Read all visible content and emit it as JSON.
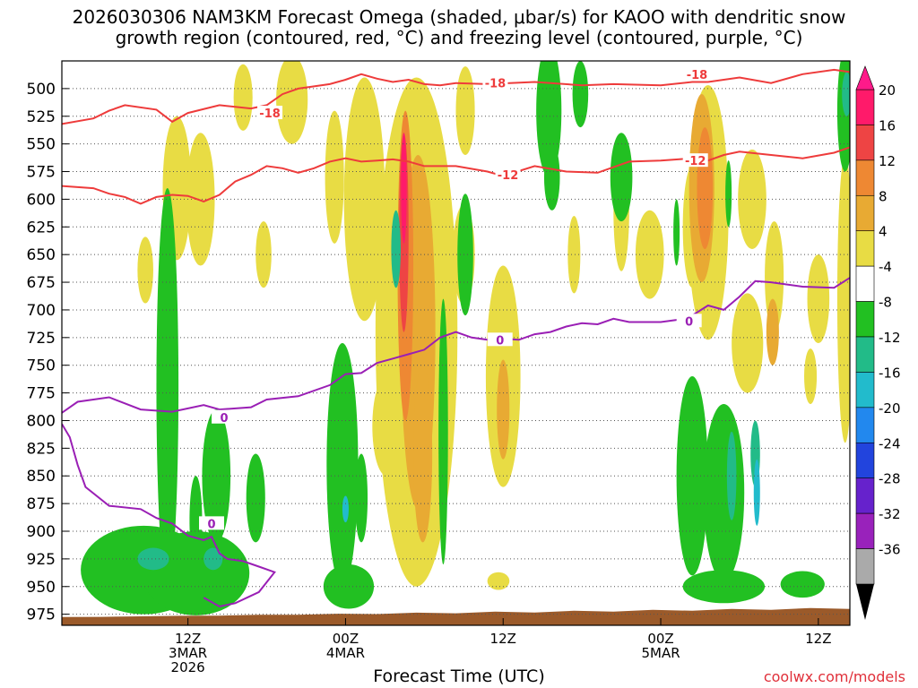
{
  "chart_data": {
    "type": "heatmap",
    "title_line1": "2026030306 NAM3KM Forecast Omega (shaded, μbar/s) for KAOO with dendritic snow",
    "title_line2": "growth region (contoured, red, °C) and freezing level (contoured, purple, °C)",
    "xlabel": "Forecast Time (UTC)",
    "credit": "coolwx.com/models",
    "x_range_hours": [
      -5,
      45
    ],
    "y_range_hpa": [
      475,
      985
    ],
    "y_ticks": [
      "500",
      "525",
      "550",
      "575",
      "600",
      "625",
      "650",
      "675",
      "700",
      "725",
      "750",
      "775",
      "800",
      "825",
      "850",
      "875",
      "900",
      "925",
      "950",
      "975"
    ],
    "x_ticks": [
      {
        "hour": 3,
        "lines": [
          "12Z",
          "3MAR",
          "2026"
        ]
      },
      {
        "hour": 13,
        "lines": [
          "00Z",
          "4MAR"
        ]
      },
      {
        "hour": 23,
        "lines": [
          "12Z"
        ]
      },
      {
        "hour": 33,
        "lines": [
          "00Z",
          "5MAR"
        ]
      },
      {
        "hour": 43,
        "lines": [
          "12Z"
        ]
      }
    ],
    "colorbar": {
      "labels": [
        "20",
        "16",
        "12",
        "8",
        "4",
        "-4",
        "-8",
        "-12",
        "-16",
        "-20",
        "-24",
        "-28",
        "-32",
        "-36"
      ],
      "colors": [
        "#ff1a6a",
        "#ee4444",
        "#ee8833",
        "#e8aa33",
        "#e8dc44",
        "#ffffff",
        "#22c022",
        "#22bb88",
        "#22bbcc",
        "#2288ee",
        "#2244dd",
        "#6622cc",
        "#9922bb",
        "#aaaaaa"
      ]
    },
    "red_contours": [
      {
        "label": "-18",
        "points": [
          [
            -5,
            532
          ],
          [
            -3,
            527
          ],
          [
            -2,
            520
          ],
          [
            -1,
            515
          ],
          [
            1,
            519
          ],
          [
            2,
            530
          ],
          [
            3,
            522
          ],
          [
            5,
            515
          ],
          [
            7,
            518
          ],
          [
            8,
            515
          ],
          [
            9,
            505
          ],
          [
            10,
            500
          ],
          [
            11,
            498
          ],
          [
            12,
            496
          ],
          [
            13,
            492
          ],
          [
            14,
            487
          ],
          [
            15,
            491
          ],
          [
            16,
            494
          ],
          [
            17,
            492
          ],
          [
            18,
            496
          ],
          [
            19,
            497
          ],
          [
            20,
            495
          ],
          [
            22,
            496
          ],
          [
            25,
            494
          ],
          [
            28,
            497
          ],
          [
            30,
            496
          ],
          [
            33,
            497
          ],
          [
            35,
            494
          ],
          [
            36,
            494
          ],
          [
            38,
            490
          ],
          [
            40,
            495
          ],
          [
            42,
            487
          ],
          [
            44,
            483
          ],
          [
            45,
            485
          ]
        ]
      },
      {
        "label": "-12",
        "points": [
          [
            -5,
            588
          ],
          [
            -3,
            590
          ],
          [
            -2,
            595
          ],
          [
            -1,
            598
          ],
          [
            0,
            604
          ],
          [
            1,
            598
          ],
          [
            2,
            596
          ],
          [
            3,
            597
          ],
          [
            4,
            602
          ],
          [
            5,
            596
          ],
          [
            6,
            584
          ],
          [
            7,
            578
          ],
          [
            8,
            570
          ],
          [
            9,
            572
          ],
          [
            10,
            576
          ],
          [
            11,
            572
          ],
          [
            12,
            566
          ],
          [
            13,
            563
          ],
          [
            14,
            566
          ],
          [
            15,
            565
          ],
          [
            16,
            564
          ],
          [
            17,
            566
          ],
          [
            18,
            570
          ],
          [
            20,
            570
          ],
          [
            22,
            575
          ],
          [
            23,
            579
          ],
          [
            25,
            570
          ],
          [
            27,
            575
          ],
          [
            29,
            576
          ],
          [
            31,
            566
          ],
          [
            33,
            565
          ],
          [
            35,
            563
          ],
          [
            36,
            565
          ],
          [
            37,
            560
          ],
          [
            38,
            557
          ],
          [
            40,
            560
          ],
          [
            42,
            563
          ],
          [
            44,
            558
          ],
          [
            45,
            553
          ]
        ]
      }
    ],
    "purple_contour": {
      "label": "0",
      "points": [
        [
          -5,
          793
        ],
        [
          -4,
          783
        ],
        [
          -2,
          779
        ],
        [
          0,
          790
        ],
        [
          2,
          792
        ],
        [
          4,
          786
        ],
        [
          5,
          790
        ],
        [
          7,
          788
        ],
        [
          8,
          781
        ],
        [
          10,
          778
        ],
        [
          12,
          768
        ],
        [
          13,
          758
        ],
        [
          14,
          757
        ],
        [
          15,
          748
        ],
        [
          16,
          744
        ],
        [
          17,
          740
        ],
        [
          18,
          736
        ],
        [
          19,
          725
        ],
        [
          20,
          720
        ],
        [
          21,
          725
        ],
        [
          22,
          727
        ],
        [
          23,
          726
        ],
        [
          24,
          727
        ],
        [
          25,
          722
        ],
        [
          26,
          720
        ],
        [
          27,
          715
        ],
        [
          28,
          712
        ],
        [
          29,
          713
        ],
        [
          30,
          708
        ],
        [
          31,
          711
        ],
        [
          32,
          711
        ],
        [
          33,
          711
        ],
        [
          34,
          709
        ],
        [
          35,
          705
        ],
        [
          36,
          696
        ],
        [
          37,
          700
        ],
        [
          38,
          688
        ],
        [
          39,
          674
        ],
        [
          40,
          675
        ],
        [
          42,
          679
        ],
        [
          44,
          680
        ],
        [
          45,
          671
        ]
      ]
    },
    "purple_lower_label": "0",
    "omega_areas": [
      {
        "cls": 4,
        "x": 0.3,
        "y": 664,
        "rx": 0.5,
        "ry": 30
      },
      {
        "cls": 4,
        "x": 2.3,
        "y": 590,
        "rx": 0.9,
        "ry": 65
      },
      {
        "cls": 4,
        "x": 3.8,
        "y": 600,
        "rx": 0.9,
        "ry": 60
      },
      {
        "cls": 4,
        "x": 6.5,
        "y": 508,
        "rx": 0.6,
        "ry": 30
      },
      {
        "cls": 4,
        "x": 7.8,
        "y": 650,
        "rx": 0.5,
        "ry": 30
      },
      {
        "cls": 4,
        "x": 9.6,
        "y": 510,
        "rx": 1.0,
        "ry": 40
      },
      {
        "cls": 4,
        "x": 12.3,
        "y": 580,
        "rx": 0.6,
        "ry": 60
      },
      {
        "cls": 4,
        "x": 14.2,
        "y": 600,
        "rx": 1.3,
        "ry": 110
      },
      {
        "cls": 4,
        "x": 17.5,
        "y": 720,
        "rx": 2.6,
        "ry": 230
      },
      {
        "cls": 4,
        "x": 15.6,
        "y": 805,
        "rx": 0.9,
        "ry": 45
      },
      {
        "cls": 4,
        "x": 20.5,
        "y": 650,
        "rx": 0.7,
        "ry": 45
      },
      {
        "cls": 4,
        "x": 20.6,
        "y": 520,
        "rx": 0.6,
        "ry": 40
      },
      {
        "cls": 4,
        "x": 23.0,
        "y": 760,
        "rx": 1.1,
        "ry": 100
      },
      {
        "cls": 4,
        "x": 27.5,
        "y": 650,
        "rx": 0.4,
        "ry": 35
      },
      {
        "cls": 4,
        "x": 30.5,
        "y": 610,
        "rx": 0.5,
        "ry": 55
      },
      {
        "cls": 4,
        "x": 32.3,
        "y": 650,
        "rx": 0.9,
        "ry": 40
      },
      {
        "cls": 4,
        "x": 35.0,
        "y": 625,
        "rx": 0.6,
        "ry": 55
      },
      {
        "cls": 4,
        "x": 36.0,
        "y": 612,
        "rx": 1.3,
        "ry": 115
      },
      {
        "cls": 4,
        "x": 38.8,
        "y": 600,
        "rx": 0.9,
        "ry": 45
      },
      {
        "cls": 4,
        "x": 38.5,
        "y": 730,
        "rx": 1.0,
        "ry": 45
      },
      {
        "cls": 4,
        "x": 40.2,
        "y": 670,
        "rx": 0.6,
        "ry": 50
      },
      {
        "cls": 4,
        "x": 42.5,
        "y": 760,
        "rx": 0.4,
        "ry": 25
      },
      {
        "cls": 4,
        "x": 43.0,
        "y": 690,
        "rx": 0.7,
        "ry": 40
      },
      {
        "cls": 4,
        "x": 44.7,
        "y": 690,
        "rx": 0.5,
        "ry": 130
      },
      {
        "cls": 4,
        "x": 22.7,
        "y": 945,
        "rx": 0.7,
        "ry": 8
      },
      {
        "cls": 8,
        "x": 17.6,
        "y": 720,
        "rx": 1.1,
        "ry": 160
      },
      {
        "cls": 8,
        "x": 17.9,
        "y": 830,
        "rx": 0.6,
        "ry": 80
      },
      {
        "cls": 8,
        "x": 23.0,
        "y": 790,
        "rx": 0.4,
        "ry": 45
      },
      {
        "cls": 8,
        "x": 35.6,
        "y": 590,
        "rx": 0.8,
        "ry": 85
      },
      {
        "cls": 8,
        "x": 40.1,
        "y": 720,
        "rx": 0.4,
        "ry": 30
      },
      {
        "cls": 12,
        "x": 16.8,
        "y": 660,
        "rx": 0.5,
        "ry": 140
      },
      {
        "cls": 12,
        "x": 35.8,
        "y": 590,
        "rx": 0.5,
        "ry": 55
      },
      {
        "cls": 16,
        "x": 16.7,
        "y": 630,
        "rx": 0.3,
        "ry": 90
      },
      {
        "cls": 20,
        "x": 16.7,
        "y": 590,
        "rx": 0.18,
        "ry": 50
      },
      {
        "cls": -4,
        "x": 0.2,
        "y": 935,
        "rx": 4.0,
        "ry": 40
      },
      {
        "cls": -4,
        "x": 3.5,
        "y": 938,
        "rx": 3.4,
        "ry": 38
      },
      {
        "cls": -4,
        "x": 1.7,
        "y": 770,
        "rx": 0.7,
        "ry": 180
      },
      {
        "cls": -4,
        "x": 3.5,
        "y": 890,
        "rx": 0.4,
        "ry": 40
      },
      {
        "cls": -4,
        "x": 4.8,
        "y": 850,
        "rx": 0.9,
        "ry": 60
      },
      {
        "cls": -4,
        "x": 7.3,
        "y": 870,
        "rx": 0.6,
        "ry": 40
      },
      {
        "cls": -4,
        "x": 12.8,
        "y": 840,
        "rx": 1.0,
        "ry": 110
      },
      {
        "cls": -4,
        "x": 13.2,
        "y": 950,
        "rx": 1.6,
        "ry": 20
      },
      {
        "cls": -4,
        "x": 14.0,
        "y": 870,
        "rx": 0.4,
        "ry": 40
      },
      {
        "cls": -4,
        "x": 19.2,
        "y": 810,
        "rx": 0.3,
        "ry": 120
      },
      {
        "cls": -4,
        "x": 20.6,
        "y": 650,
        "rx": 0.5,
        "ry": 55
      },
      {
        "cls": -4,
        "x": 25.9,
        "y": 520,
        "rx": 0.8,
        "ry": 60
      },
      {
        "cls": -4,
        "x": 27.9,
        "y": 505,
        "rx": 0.5,
        "ry": 30
      },
      {
        "cls": -4,
        "x": 26.1,
        "y": 580,
        "rx": 0.5,
        "ry": 30
      },
      {
        "cls": -4,
        "x": 30.5,
        "y": 580,
        "rx": 0.7,
        "ry": 40
      },
      {
        "cls": -4,
        "x": 34.0,
        "y": 630,
        "rx": 0.2,
        "ry": 30
      },
      {
        "cls": -4,
        "x": 37.3,
        "y": 595,
        "rx": 0.2,
        "ry": 30
      },
      {
        "cls": -4,
        "x": 35.0,
        "y": 850,
        "rx": 1.0,
        "ry": 90
      },
      {
        "cls": -4,
        "x": 37.0,
        "y": 865,
        "rx": 1.3,
        "ry": 80
      },
      {
        "cls": -4,
        "x": 37.0,
        "y": 950,
        "rx": 2.6,
        "ry": 15
      },
      {
        "cls": -4,
        "x": 42.0,
        "y": 948,
        "rx": 1.4,
        "ry": 12
      },
      {
        "cls": -4,
        "x": 44.7,
        "y": 520,
        "rx": 0.5,
        "ry": 55
      },
      {
        "cls": -8,
        "x": 0.8,
        "y": 925,
        "rx": 1.0,
        "ry": 10
      },
      {
        "cls": -8,
        "x": 4.6,
        "y": 925,
        "rx": 0.6,
        "ry": 10
      },
      {
        "cls": -8,
        "x": 16.2,
        "y": 645,
        "rx": 0.3,
        "ry": 35
      },
      {
        "cls": -8,
        "x": 37.5,
        "y": 850,
        "rx": 0.3,
        "ry": 40
      },
      {
        "cls": -8,
        "x": 39.0,
        "y": 830,
        "rx": 0.3,
        "ry": 30
      },
      {
        "cls": -8,
        "x": 44.8,
        "y": 505,
        "rx": 0.3,
        "ry": 20
      },
      {
        "cls": -12,
        "x": 13.0,
        "y": 880,
        "rx": 0.2,
        "ry": 12
      },
      {
        "cls": -12,
        "x": 39.1,
        "y": 865,
        "rx": 0.2,
        "ry": 30
      }
    ]
  }
}
